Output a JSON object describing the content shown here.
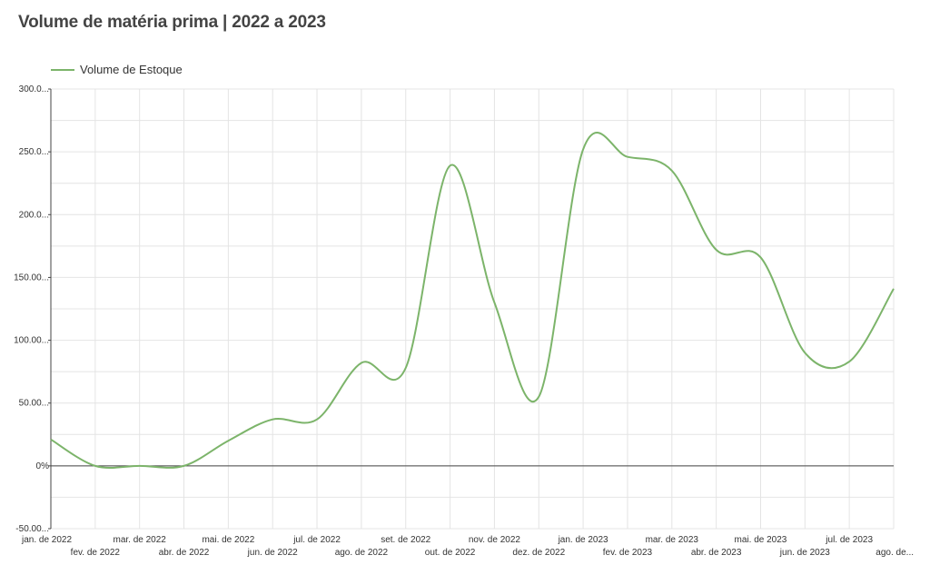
{
  "title": "Volume de matéria prima | 2022 a 2023",
  "chart_data": {
    "type": "line",
    "title": "Volume de matéria prima | 2022 a 2023",
    "xlabel": "",
    "ylabel": "",
    "ylim": [
      -50,
      300
    ],
    "y_ticks": [
      "300.0...",
      "250.0...",
      "200.0...",
      "150.00...",
      "100.00...",
      "50.00...",
      "0%",
      "-50.00..."
    ],
    "categories": [
      "jan. de 2022",
      "fev. de 2022",
      "mar. de 2022",
      "abr. de 2022",
      "mai. de 2022",
      "jun. de 2022",
      "jul. de 2022",
      "ago. de 2022",
      "set. de 2022",
      "out. de 2022",
      "nov. de 2022",
      "dez. de 2022",
      "jan. de 2023",
      "fev. de 2023",
      "mar. de 2023",
      "abr. de 2023",
      "mai. de 2023",
      "jun. de 2023",
      "jul. de 2023",
      "ago. de..."
    ],
    "series": [
      {
        "name": "Volume de Estoque",
        "color": "#7cb46a",
        "values": [
          21,
          0,
          0,
          0,
          20,
          37,
          37,
          82,
          78,
          239,
          130,
          55,
          252,
          246,
          235,
          172,
          166,
          90,
          83,
          141
        ]
      }
    ],
    "grid": true,
    "legend": "top-left"
  }
}
